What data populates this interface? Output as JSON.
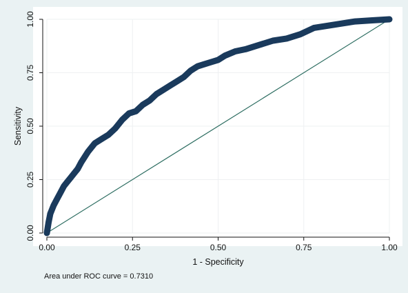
{
  "chart_data": {
    "type": "line",
    "xlabel": "1 - Specificity",
    "ylabel": "Sensitivity",
    "xlim": [
      0,
      1
    ],
    "ylim": [
      0,
      1
    ],
    "x_ticks": [
      "0.00",
      "0.25",
      "0.50",
      "0.75",
      "1.00"
    ],
    "y_ticks": [
      "0.00",
      "0.25",
      "0.50",
      "0.75",
      "1.00"
    ],
    "grid": "vertical and horizontal at major ticks",
    "note": "Area under ROC curve = 0.7310",
    "auc": 0.731,
    "series": [
      {
        "line_color": "#1a3a5c",
        "marker": "filled circle",
        "x": [
          0.0,
          0.005,
          0.01,
          0.02,
          0.03,
          0.04,
          0.05,
          0.06,
          0.07,
          0.08,
          0.09,
          0.1,
          0.12,
          0.14,
          0.16,
          0.18,
          0.2,
          0.22,
          0.24,
          0.26,
          0.28,
          0.3,
          0.32,
          0.34,
          0.36,
          0.38,
          0.4,
          0.42,
          0.44,
          0.46,
          0.48,
          0.5,
          0.52,
          0.55,
          0.58,
          0.62,
          0.66,
          0.7,
          0.74,
          0.78,
          0.82,
          0.86,
          0.9,
          0.95,
          1.0
        ],
        "y": [
          0.0,
          0.05,
          0.09,
          0.13,
          0.16,
          0.19,
          0.22,
          0.24,
          0.26,
          0.28,
          0.3,
          0.33,
          0.38,
          0.42,
          0.44,
          0.46,
          0.49,
          0.53,
          0.56,
          0.57,
          0.6,
          0.62,
          0.65,
          0.67,
          0.69,
          0.71,
          0.73,
          0.76,
          0.78,
          0.79,
          0.8,
          0.81,
          0.83,
          0.85,
          0.86,
          0.88,
          0.9,
          0.91,
          0.93,
          0.96,
          0.97,
          0.98,
          0.99,
          0.995,
          1.0
        ]
      },
      {
        "line_color": "#2e6e62",
        "marker": "none",
        "x": [
          0,
          1
        ],
        "y": [
          0,
          1
        ]
      }
    ]
  }
}
